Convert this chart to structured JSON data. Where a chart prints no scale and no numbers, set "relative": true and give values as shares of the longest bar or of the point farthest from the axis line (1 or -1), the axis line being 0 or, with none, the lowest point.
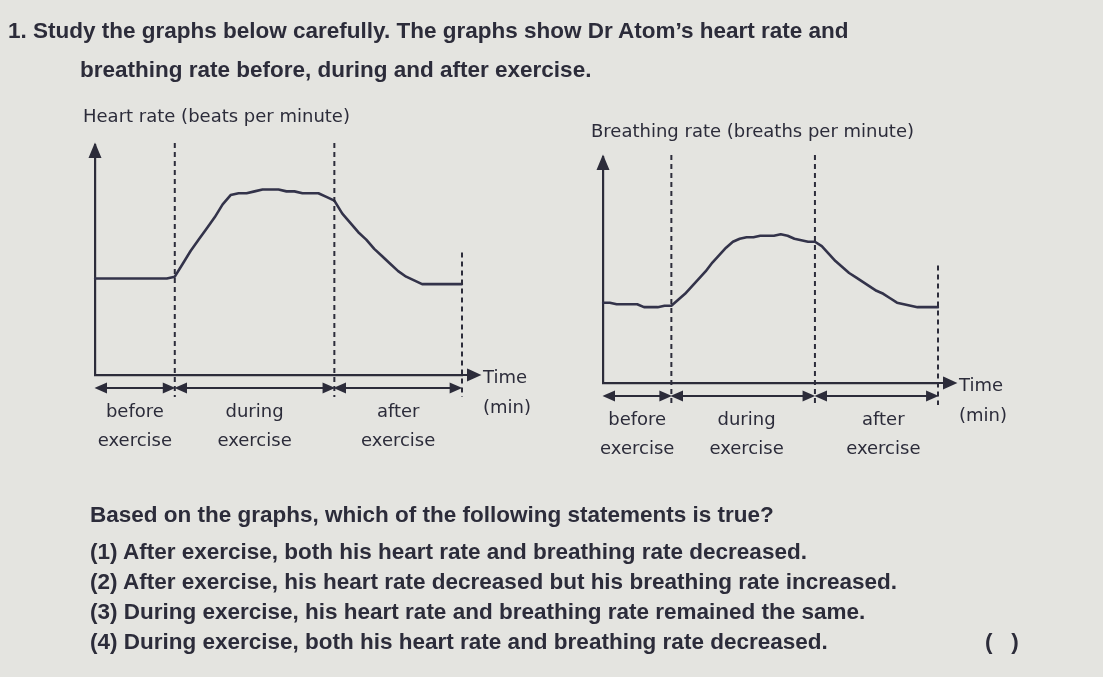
{
  "chart_data": [
    {
      "type": "other",
      "title": "1. Study the graphs below carefully. The graphs show Dr Atom’s heart rate and breathing rate before, during and after exercise."
    },
    {
      "type": "line",
      "ylabel": "Heart rate (beats per minute)",
      "xlabel": "Time (min)",
      "relative": true,
      "tick_labels": "x",
      "categories": [
        null,
        null,
        null,
        null,
        null,
        "before exercise",
        null,
        null,
        null,
        null,
        null,
        null,
        null,
        null,
        null,
        null,
        null,
        null,
        null,
        null,
        "during exercise",
        null,
        null,
        null,
        null,
        null,
        null,
        null,
        null,
        null,
        null,
        null,
        null,
        null,
        null,
        null,
        null,
        null,
        "after exercise",
        null,
        null,
        null,
        null,
        null,
        null,
        null,
        null
      ],
      "series": [
        {
          "color": "#33334a",
          "values": [
            0.52,
            0.52,
            0.52,
            0.52,
            0.52,
            0.52,
            0.52,
            0.52,
            0.52,
            0.52,
            0.53,
            0.6,
            0.67,
            0.73,
            0.79,
            0.85,
            0.92,
            0.97,
            0.98,
            0.98,
            0.99,
            1,
            1,
            1,
            0.99,
            0.99,
            0.98,
            0.98,
            0.98,
            0.96,
            0.94,
            0.87,
            0.82,
            0.77,
            0.73,
            0.68,
            0.64,
            0.6,
            0.56,
            0.53,
            0.51,
            0.49,
            0.49,
            0.49,
            0.49,
            0.49,
            0.49
          ]
        }
      ]
    },
    {
      "type": "line",
      "ylabel": "Breathing rate (breaths per minute)",
      "xlabel": "Time (min)",
      "relative": true,
      "tick_labels": "x",
      "categories": [
        null,
        null,
        null,
        null,
        null,
        "before exercise",
        null,
        null,
        null,
        null,
        null,
        null,
        null,
        null,
        null,
        null,
        null,
        null,
        null,
        null,
        null,
        "during exercise",
        null,
        null,
        null,
        null,
        null,
        null,
        null,
        null,
        null,
        null,
        null,
        null,
        null,
        null,
        null,
        null,
        null,
        null,
        null,
        "after exercise",
        null,
        null,
        null,
        null,
        null,
        null,
        null,
        null
      ],
      "series": [
        {
          "color": "#33334a",
          "values": [
            0.54,
            0.54,
            0.53,
            0.53,
            0.53,
            0.53,
            0.51,
            0.51,
            0.51,
            0.52,
            0.52,
            0.56,
            0.6,
            0.65,
            0.7,
            0.75,
            0.81,
            0.86,
            0.91,
            0.95,
            0.97,
            0.98,
            0.98,
            0.99,
            0.99,
            0.99,
            1,
            0.99,
            0.97,
            0.96,
            0.95,
            0.95,
            0.92,
            0.87,
            0.82,
            0.78,
            0.74,
            0.71,
            0.68,
            0.65,
            0.62,
            0.6,
            0.57,
            0.54,
            0.53,
            0.52,
            0.51,
            0.51,
            0.51,
            0.51
          ]
        }
      ]
    },
    {
      "type": "other",
      "annotations": [
        "Based on the graphs, which of the following statements is true?",
        "(1) After exercise, both his heart rate and breathing rate decreased.",
        "(2) After exercise, his heart rate decreased but his breathing rate increased.",
        "(3) During exercise, his heart rate and breathing rate remained the same.",
        "(4) During exercise, both his heart rate and breathing rate decreased.",
        "(   )"
      ]
    }
  ]
}
